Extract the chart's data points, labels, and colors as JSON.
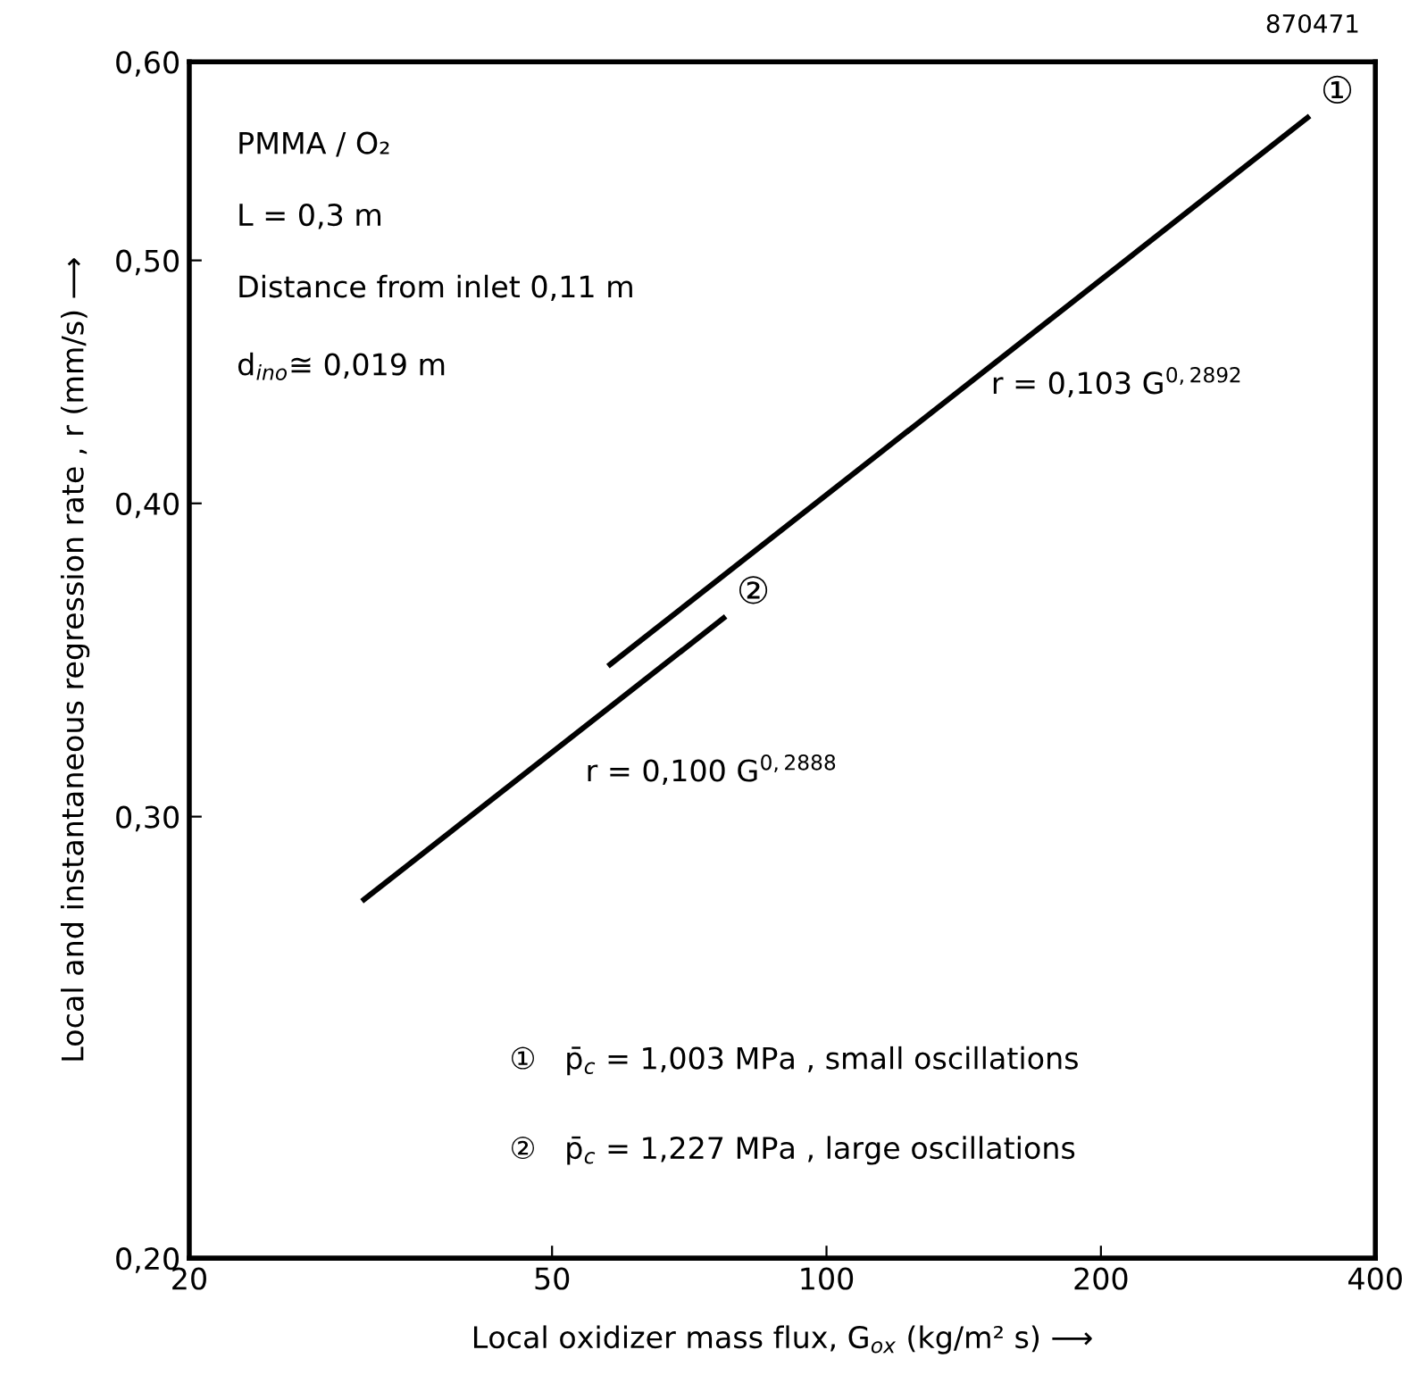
{
  "chart_data": {
    "type": "line",
    "xlabel": "Local oxidizer mass flux, G$_{ox}$ (kg/m² s) ⟶",
    "ylabel": "Local and instantaneous regression rate , r (mm/s) ⟶",
    "log": "xy",
    "xlim": [
      20,
      400
    ],
    "ylim": [
      0.2,
      0.6
    ],
    "xticks": [
      20,
      50,
      100,
      200,
      400
    ],
    "yticks": [
      {
        "value": 0.2,
        "label": "0,20"
      },
      {
        "value": 0.3,
        "label": "0,30"
      },
      {
        "value": 0.4,
        "label": "0,40"
      },
      {
        "value": 0.5,
        "label": "0,50"
      },
      {
        "value": 0.6,
        "label": "0,60"
      }
    ],
    "series": [
      {
        "name": "①",
        "color": "#000000",
        "x": [
          57.9,
          337
        ],
        "values": [
          0.345,
          0.57
        ]
      },
      {
        "name": "②",
        "color": "#000000",
        "x": [
          31.1,
          77.1
        ],
        "values": [
          0.278,
          0.36
        ]
      }
    ],
    "grid": false,
    "legend": false,
    "marker": "none",
    "line_style": "solid",
    "annotations": [
      "870471",
      "PMMA / O₂",
      "L = 0,3 m",
      "Distance from inlet 0,11 m",
      "d$_{ino}$≅ 0,019 m",
      "r = 0,103 G$^{0,2892}$",
      "r = 0,100 G$^{0,2888}$",
      "①   p̄$_{c}$ = 1,003 MPa , small oscillations",
      "②   p̄$_{c}$ = 1,227 MPa , large oscillations"
    ]
  }
}
